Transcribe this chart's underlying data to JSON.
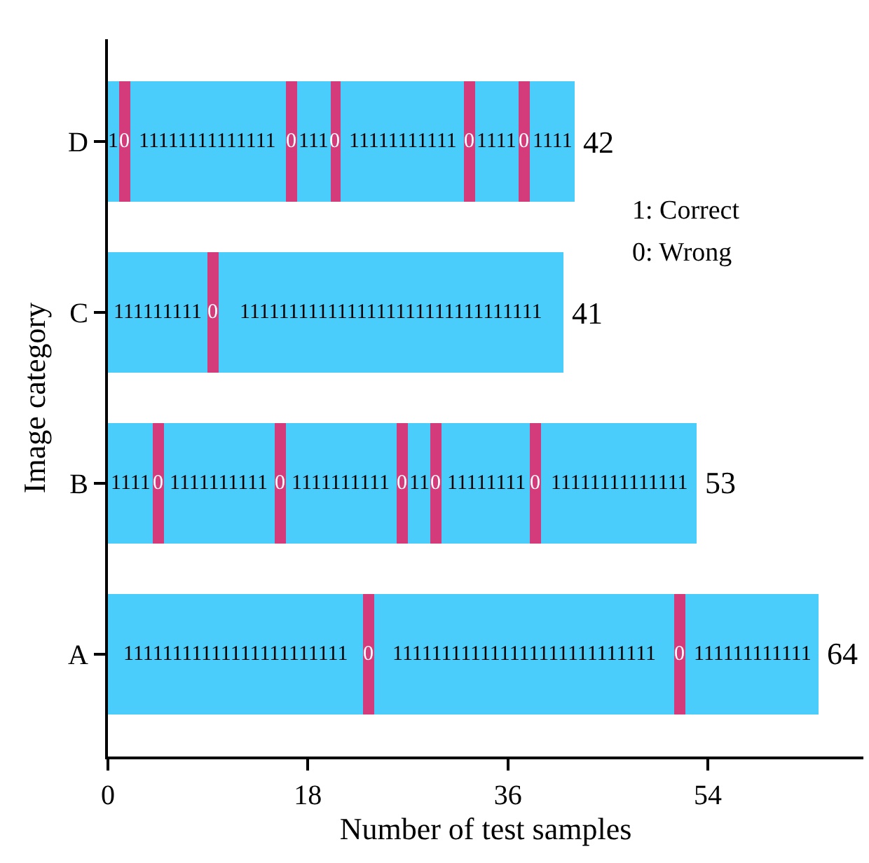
{
  "chart_data": {
    "type": "bar",
    "orientation": "horizontal",
    "stacked": true,
    "xlabel": "Number of test samples",
    "ylabel": "Image category",
    "categories": [
      "D",
      "C",
      "B",
      "A"
    ],
    "series": [
      {
        "color": "#4acdfa",
        "values": [
          1,
          9,
          4,
          23
        ]
      },
      {
        "color": "#d33b7a",
        "values": [
          1,
          1,
          1,
          1
        ]
      },
      {
        "color": "#4acdfa",
        "values": [
          14,
          31,
          10,
          27
        ]
      },
      {
        "color": "#d33b7a",
        "values": [
          1,
          null,
          1,
          1
        ]
      },
      {
        "color": "#4acdfa",
        "values": [
          3,
          null,
          10,
          12
        ]
      },
      {
        "color": "#d33b7a",
        "values": [
          1,
          null,
          1,
          null
        ]
      },
      {
        "color": "#4acdfa",
        "values": [
          11,
          null,
          2,
          null
        ]
      },
      {
        "color": "#d33b7a",
        "values": [
          1,
          null,
          1,
          null
        ]
      },
      {
        "color": "#4acdfa",
        "values": [
          4,
          null,
          8,
          null
        ]
      },
      {
        "color": "#d33b7a",
        "values": [
          1,
          null,
          1,
          null
        ]
      },
      {
        "color": "#4acdfa",
        "values": [
          4,
          null,
          14,
          null
        ]
      }
    ],
    "totals": [
      "42",
      "41",
      "53",
      "64"
    ],
    "xlim": [
      0,
      68
    ],
    "xticks": [
      0,
      18,
      36,
      54
    ],
    "annotations": [
      "1: Correct",
      "0: Wrong",
      "1",
      "0",
      "11111111111111",
      "0",
      "111",
      "0",
      "11111111111",
      "0",
      "1111",
      "0",
      "1111",
      "111111111",
      "0",
      "1111111111111111111111111111111",
      "1111",
      "0",
      "1111111111",
      "0",
      "1111111111",
      "0",
      "11",
      "0",
      "11111111",
      "0",
      "11111111111111",
      "11111111111111111111111",
      "0",
      "111111111111111111111111111",
      "0",
      "111111111111"
    ]
  }
}
